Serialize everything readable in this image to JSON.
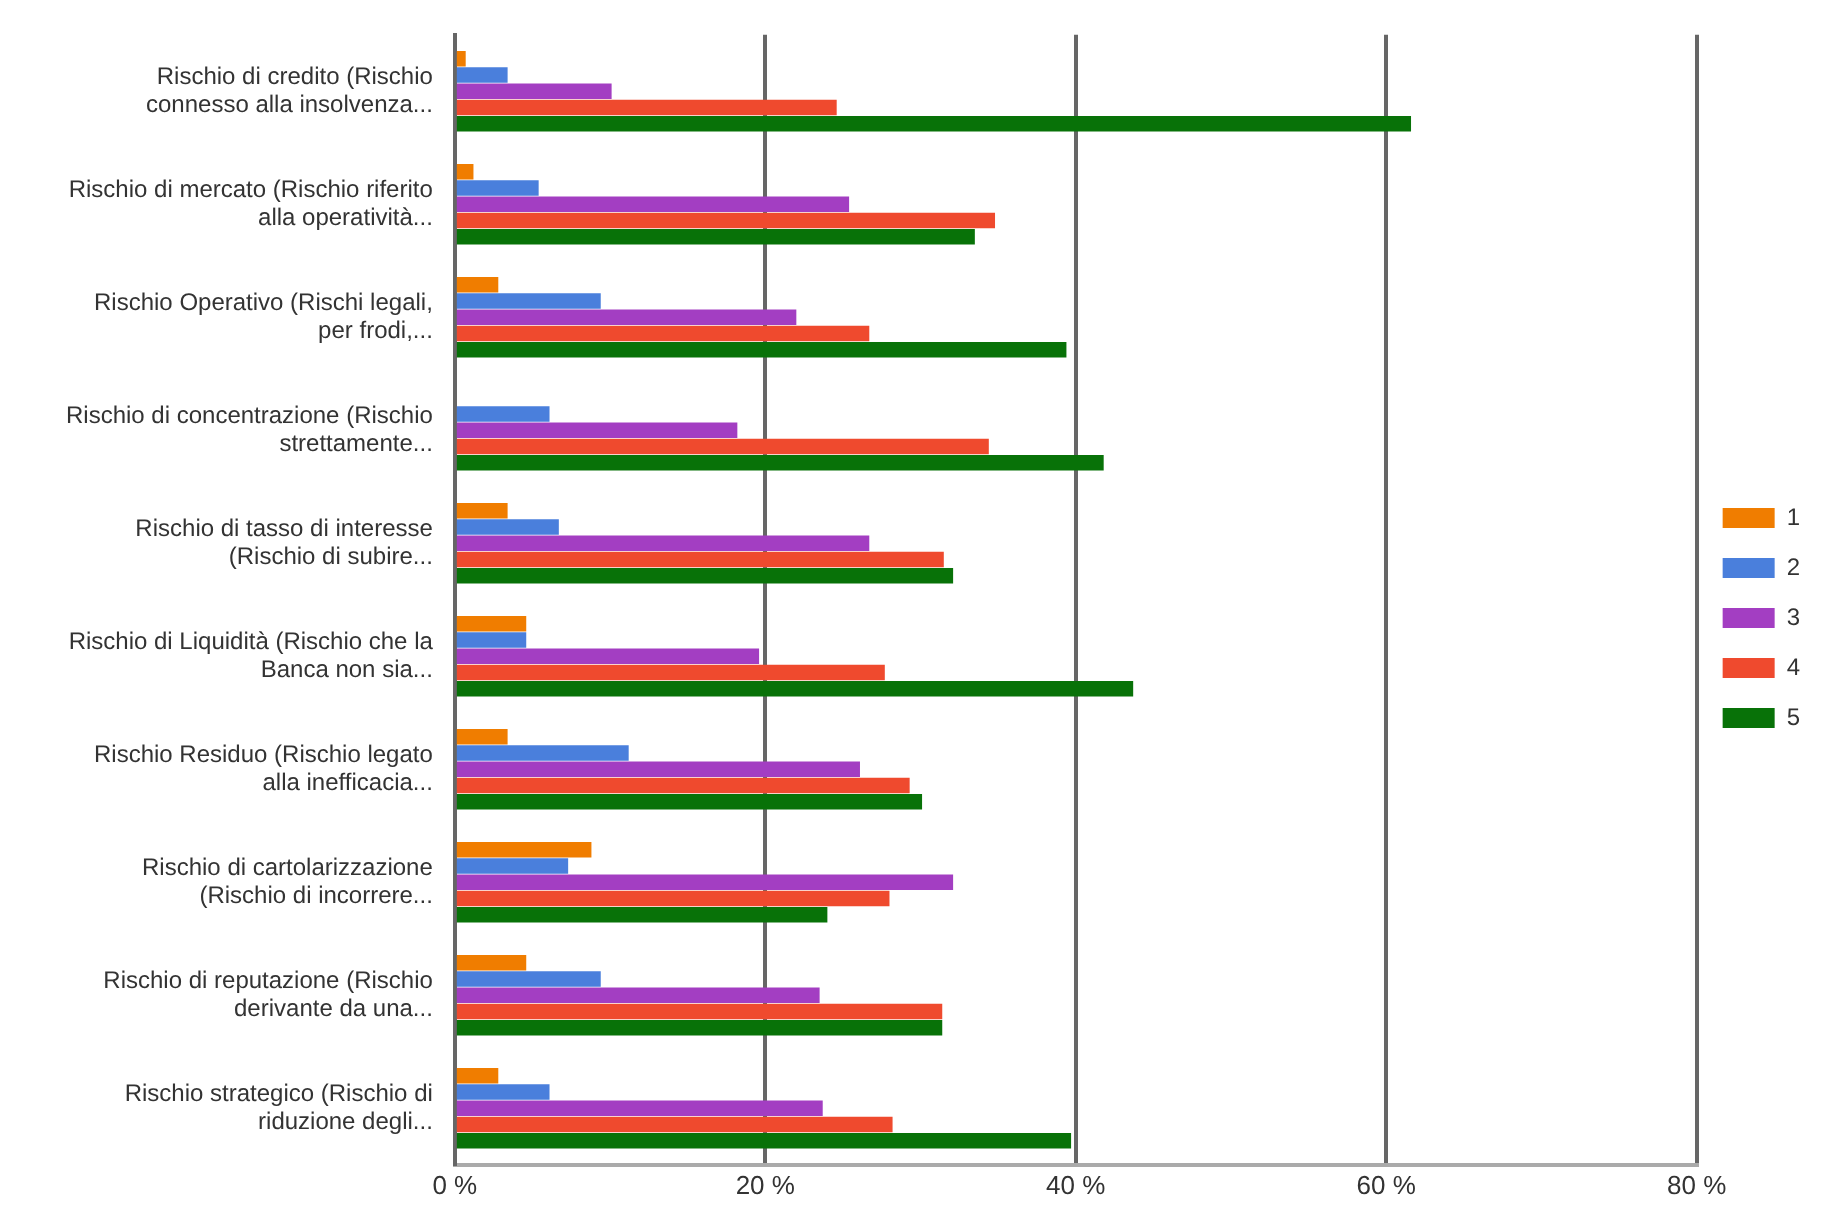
{
  "chart_data": {
    "type": "bar",
    "orientation": "horizontal",
    "categories": [
      "Rischio di credito (Rischio connesso alla insolvenza...",
      "Rischio di mercato (Rischio riferito alla operatività...",
      "Rischio Operativo (Rischi legali, per frodi,...",
      "Rischio di concentrazione (Rischio strettamente...",
      "Rischio di tasso di interesse (Rischio di subire...",
      "Rischio di Liquidità (Rischio che la Banca non sia...",
      "Rischio Residuo (Rischio legato alla inefficacia...",
      "Rischio di cartolarizzazione (Rischio di incorrere...",
      "Rischio di reputazione (Rischio derivante da una...",
      "Rischio strategico (Rischio di riduzione degli..."
    ],
    "series": [
      {
        "name": "1",
        "color": "#f07d00",
        "values": [
          0.7,
          1.2,
          2.8,
          null,
          3.4,
          4.6,
          3.4,
          8.8,
          4.6,
          2.8
        ]
      },
      {
        "name": "2",
        "color": "#4a7fdc",
        "values": [
          3.4,
          5.4,
          9.4,
          6.1,
          6.7,
          4.6,
          11.2,
          7.3,
          9.4,
          6.1
        ]
      },
      {
        "name": "3",
        "color": "#a33ec2",
        "values": [
          10.1,
          25.4,
          22.0,
          18.2,
          26.7,
          19.6,
          26.1,
          32.1,
          23.5,
          23.7
        ]
      },
      {
        "name": "4",
        "color": "#ef4a2e",
        "values": [
          24.6,
          34.8,
          26.7,
          34.4,
          31.5,
          27.7,
          29.3,
          28.0,
          31.4,
          28.2
        ]
      },
      {
        "name": "5",
        "color": "#087208",
        "values": [
          61.6,
          33.5,
          39.4,
          41.8,
          32.1,
          43.7,
          30.1,
          24.0,
          31.4,
          39.7
        ]
      }
    ],
    "xlim": [
      0,
      80
    ],
    "xticks": [
      {
        "value": 0,
        "label": "0 %"
      },
      {
        "value": 20,
        "label": "20 %"
      },
      {
        "value": 40,
        "label": "40 %"
      },
      {
        "value": 60,
        "label": "60 %"
      },
      {
        "value": 80,
        "label": "80 %"
      }
    ],
    "grid": "x",
    "legend": "right"
  }
}
